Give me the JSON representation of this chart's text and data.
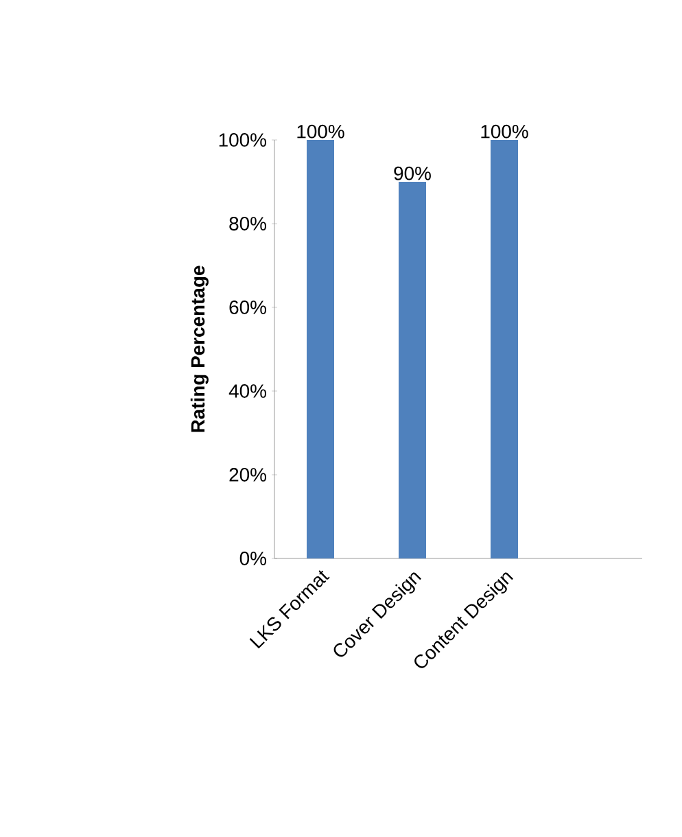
{
  "chart_data": {
    "type": "bar",
    "ylabel": "Rating Percentage",
    "categories": [
      "LKS Format",
      "Cover Design",
      "Content Design",
      null
    ],
    "values": [
      100,
      90,
      100,
      null
    ],
    "color": "#4f81bd",
    "value_labels": [
      "100%",
      "90%",
      "100%",
      null
    ],
    "ylim": [
      0,
      100
    ],
    "yticks": [
      {
        "value": 0,
        "label": "0%"
      },
      {
        "value": 20,
        "label": "20%"
      },
      {
        "value": 40,
        "label": "40%"
      },
      {
        "value": 60,
        "label": "60%"
      },
      {
        "value": 80,
        "label": "80%"
      },
      {
        "value": 100,
        "label": "100%"
      }
    ]
  }
}
